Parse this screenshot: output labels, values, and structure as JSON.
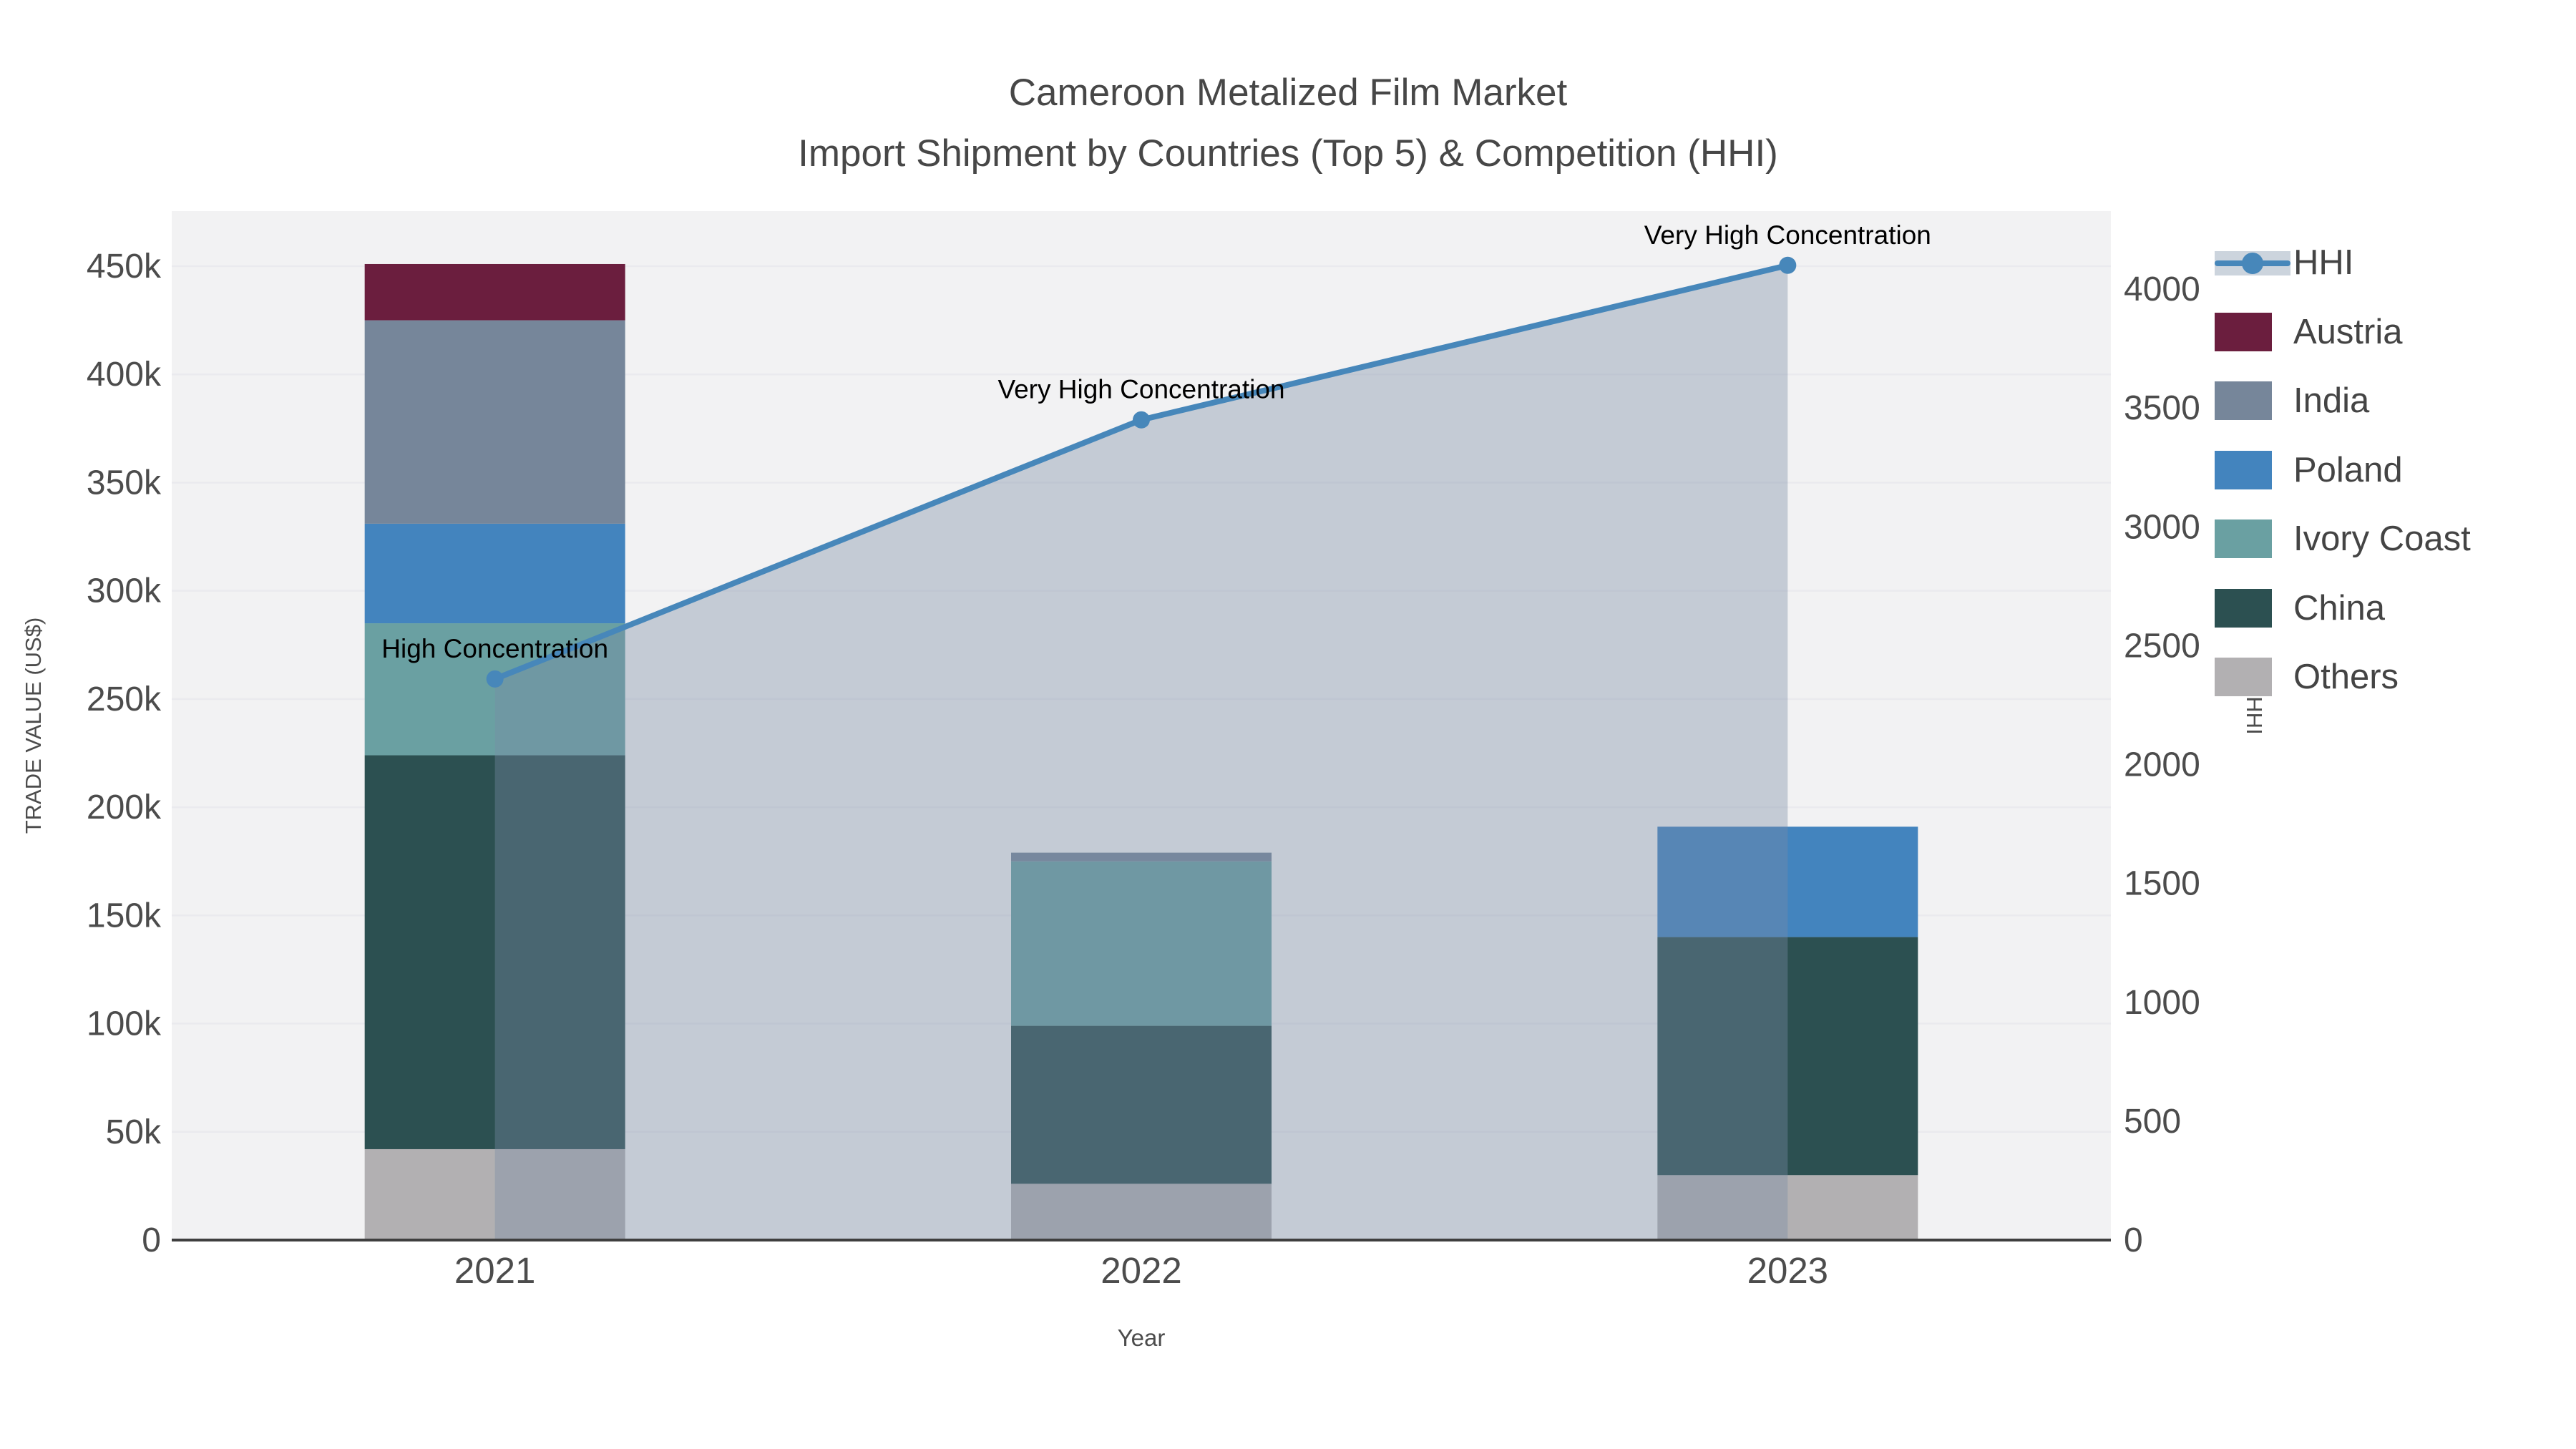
{
  "title": {
    "line1": "Cameroon Metalized Film Market",
    "line2": "Import Shipment by Countries (Top 5) & Competition (HHI)"
  },
  "axes": {
    "x": {
      "title": "Year",
      "ticks": [
        "2021",
        "2022",
        "2023"
      ]
    },
    "y_left": {
      "title": "TRADE VALUE (US$)",
      "ticks": [
        "0",
        "50k",
        "100k",
        "150k",
        "200k",
        "250k",
        "300k",
        "350k",
        "400k",
        "450k"
      ]
    },
    "y_right": {
      "title": "HHI",
      "ticks": [
        "0",
        "500",
        "1000",
        "1500",
        "2000",
        "2500",
        "3000",
        "3500",
        "4000"
      ]
    }
  },
  "legend": [
    {
      "label": "HHI",
      "type": "line",
      "color": "#4787ba"
    },
    {
      "label": "Austria",
      "type": "swatch",
      "color": "#6b1e3e"
    },
    {
      "label": "India",
      "type": "swatch",
      "color": "#76869a"
    },
    {
      "label": "Poland",
      "type": "swatch",
      "color": "#4384be"
    },
    {
      "label": "Ivory Coast",
      "type": "swatch",
      "color": "#6aa0a2"
    },
    {
      "label": "China",
      "type": "swatch",
      "color": "#2c5051"
    },
    {
      "label": "Others",
      "type": "swatch",
      "color": "#b2b0b2"
    }
  ],
  "annotations": [
    {
      "year": "2021",
      "text": "High Concentration"
    },
    {
      "year": "2022",
      "text": "Very High Concentration"
    },
    {
      "year": "2023",
      "text": "Very High Concentration"
    }
  ],
  "chart_data": {
    "type": "combo_stacked_bar_line",
    "title": "Cameroon Metalized Film Market — Import Shipment by Countries (Top 5) & Competition (HHI)",
    "categories": [
      "2021",
      "2022",
      "2023"
    ],
    "bar_series": [
      {
        "name": "Others",
        "color": "#b2b0b2",
        "values": [
          42000,
          26000,
          30000
        ]
      },
      {
        "name": "China",
        "color": "#2c5051",
        "values": [
          182000,
          73000,
          110000
        ]
      },
      {
        "name": "Ivory Coast",
        "color": "#6aa0a2",
        "values": [
          61000,
          76000,
          0
        ]
      },
      {
        "name": "Poland",
        "color": "#4384be",
        "values": [
          46000,
          0,
          51000
        ]
      },
      {
        "name": "India",
        "color": "#76869a",
        "values": [
          94000,
          4000,
          0
        ]
      },
      {
        "name": "Austria",
        "color": "#6b1e3e",
        "values": [
          26000,
          0,
          0
        ]
      }
    ],
    "bar_totals": [
      451000,
      179000,
      191000
    ],
    "line_series": {
      "name": "HHI",
      "color": "#4787ba",
      "area_fill": "rgba(120,140,165,0.38)",
      "values": [
        2360,
        3450,
        4100
      ]
    },
    "xlabel": "Year",
    "ylabel_left": "TRADE VALUE (US$)",
    "ylabel_right": "HHI",
    "y_left_axis": {
      "min": 0,
      "max": 475000,
      "tick_step": 50000,
      "tick_max": 450000
    },
    "y_right_axis": {
      "min": 0,
      "max": 4330,
      "tick_step": 500,
      "tick_max": 4000
    },
    "grid": true,
    "legend_position": "right",
    "plot_background": "#f2f2f3"
  }
}
